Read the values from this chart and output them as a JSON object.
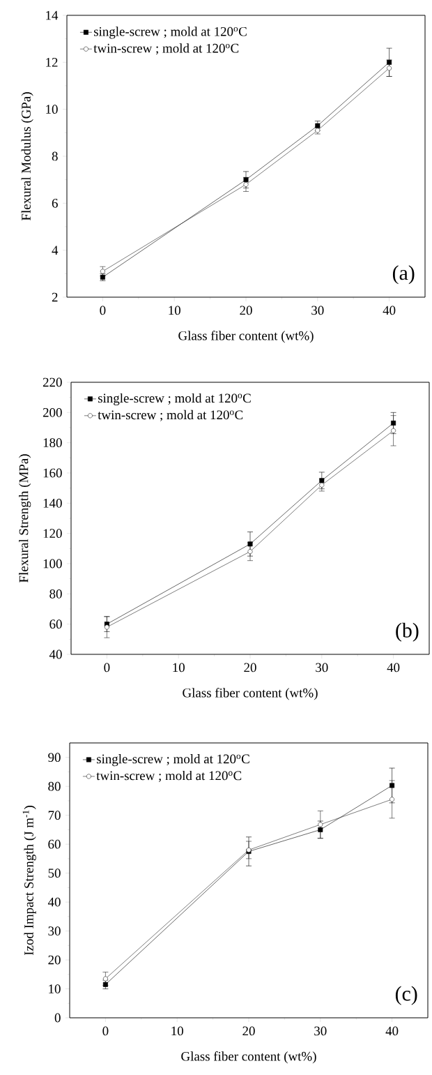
{
  "chart_data": [
    {
      "type": "line",
      "xlabel": "Glass fiber content (wt%)",
      "ylabel": "Flexural Modulus (GPa)",
      "x": [
        0,
        20,
        30,
        40
      ],
      "xlim": [
        -5,
        45
      ],
      "ylim": [
        2,
        14
      ],
      "xticks": [
        0,
        10,
        20,
        30,
        40
      ],
      "yticks": [
        2,
        4,
        6,
        8,
        10,
        12,
        14
      ],
      "legend": "top left",
      "annotations": [
        "(a)"
      ],
      "series": [
        {
          "name": "single-screw ; mold at 120$^{o}$C",
          "color": "#000000",
          "marker": "square",
          "values": [
            2.85,
            7.0,
            9.3,
            12.0
          ],
          "errors": [
            0.15,
            0.35,
            0.2,
            0.6
          ]
        },
        {
          "name": "twin-screw ; mold at 120$^{o}$C",
          "color": "#262626",
          "marker": "circle",
          "values": [
            3.1,
            6.8,
            9.1,
            11.75
          ],
          "errors": [
            0.2,
            0.3,
            0.15,
            0.35
          ]
        }
      ]
    },
    {
      "type": "line",
      "xlabel": "Glass fiber content (wt%)",
      "ylabel": "Flexural Strength (MPa)",
      "x": [
        0,
        20,
        30,
        40
      ],
      "xlim": [
        -5,
        45
      ],
      "ylim": [
        40,
        220
      ],
      "xticks": [
        0,
        10,
        20,
        30,
        40
      ],
      "yticks": [
        40,
        60,
        80,
        100,
        120,
        140,
        160,
        180,
        200,
        220
      ],
      "legend": "top left",
      "annotations": [
        "(b)"
      ],
      "series": [
        {
          "name": "single-screw ; mold at 120$^{o}$C",
          "color": "#000000",
          "marker": "square",
          "values": [
            60,
            113,
            155,
            193
          ],
          "errors": [
            5,
            8,
            5.5,
            7
          ]
        },
        {
          "name": "twin-screw ; mold at 120$^{o}$C",
          "color": "#262626",
          "marker": "circle",
          "values": [
            58,
            108,
            152,
            188
          ],
          "errors": [
            7,
            6,
            4,
            10
          ]
        }
      ]
    },
    {
      "type": "line",
      "xlabel": "Glass fiber content (wt%)",
      "ylabel": "Izod Impact Strength (J m$^{-1}$)",
      "x": [
        0,
        20,
        30,
        40
      ],
      "xlim": [
        -5,
        45
      ],
      "ylim": [
        0,
        95
      ],
      "xticks": [
        0,
        10,
        20,
        30,
        40
      ],
      "yticks": [
        0,
        10,
        20,
        30,
        40,
        50,
        60,
        70,
        80,
        90
      ],
      "legend": "top left",
      "annotations": [
        "(c)"
      ],
      "series": [
        {
          "name": "single-screw ; mold at 120$^{o}$C",
          "color": "#000000",
          "marker": "square",
          "values": [
            11.5,
            57.5,
            65,
            80.3
          ],
          "errors": [
            1.5,
            5,
            3,
            6
          ]
        },
        {
          "name": "twin-screw ; mold at 120$^{o}$C",
          "color": "#262626",
          "marker": "circle",
          "values": [
            13.5,
            58,
            66.8,
            75.5
          ],
          "errors": [
            2.3,
            3,
            4.7,
            6.5
          ]
        }
      ]
    }
  ]
}
